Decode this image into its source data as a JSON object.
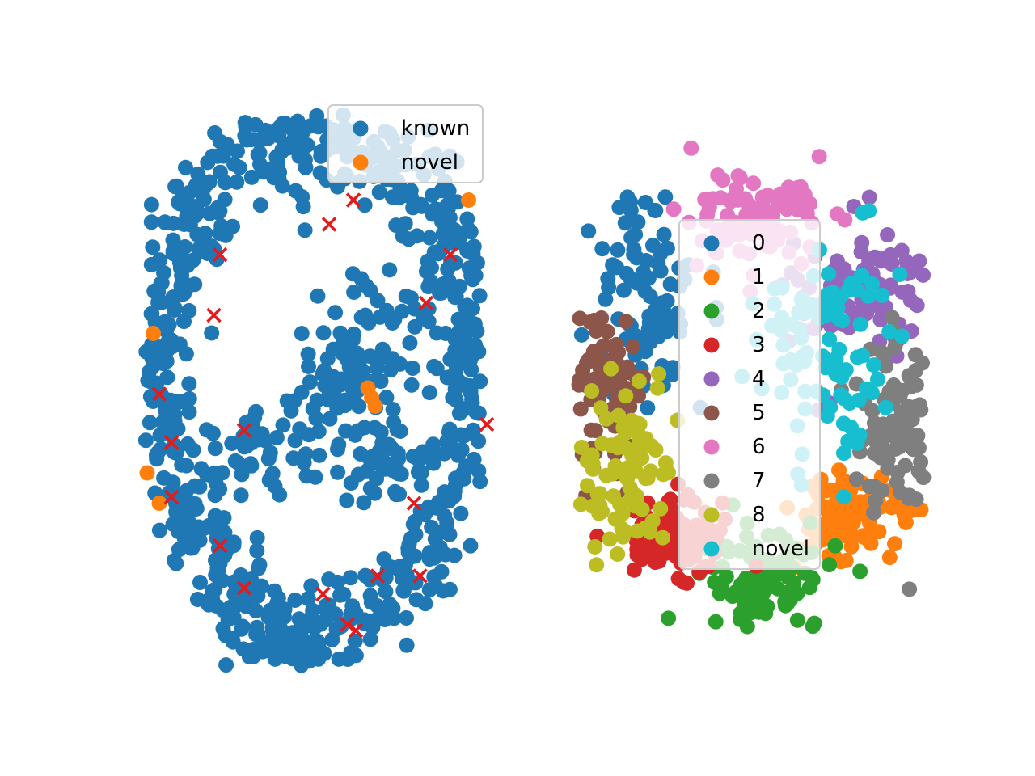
{
  "chart_data": [
    {
      "type": "scatter",
      "title": "",
      "xlabel": "",
      "ylabel": "",
      "axes_visible": false,
      "grid": false,
      "legend": {
        "placement": "top-right",
        "entries": [
          "known",
          "novel"
        ]
      },
      "series": [
        {
          "name": "known",
          "color": "#1f77b4",
          "marker": "circle",
          "description": "dense ring-shaped embedding cluster",
          "approx_count": 900
        },
        {
          "name": "novel",
          "color": "#ff7f0e",
          "marker": "circle",
          "points": [
            [
              -1.35,
              0.45
            ],
            [
              -1.4,
              -0.7
            ],
            [
              -1.3,
              -0.95
            ],
            [
              0.42,
              0.0
            ],
            [
              0.45,
              -0.08
            ],
            [
              0.48,
              -0.15
            ],
            [
              1.25,
              1.55
            ]
          ]
        },
        {
          "color": "#e41a1c",
          "marker": "x",
          "points": [
            [
              0.3,
              1.55
            ],
            [
              0.1,
              1.35
            ],
            [
              -0.8,
              1.1
            ],
            [
              1.1,
              1.1
            ],
            [
              -0.85,
              0.6
            ],
            [
              0.9,
              0.7
            ],
            [
              -1.3,
              -0.05
            ],
            [
              -0.6,
              -0.35
            ],
            [
              1.4,
              -0.3
            ],
            [
              -1.2,
              -0.45
            ],
            [
              -1.2,
              -0.9
            ],
            [
              0.8,
              -0.95
            ],
            [
              -0.8,
              -1.3
            ],
            [
              -0.6,
              -1.65
            ],
            [
              0.5,
              -1.55
            ],
            [
              0.85,
              -1.55
            ],
            [
              0.25,
              -1.95
            ],
            [
              0.32,
              -2.0
            ],
            [
              0.05,
              -1.7
            ]
          ]
        }
      ]
    },
    {
      "type": "scatter",
      "title": "",
      "xlabel": "",
      "ylabel": "",
      "axes_visible": false,
      "grid": false,
      "legend": {
        "placement": "center",
        "entries": [
          "0",
          "1",
          "2",
          "3",
          "4",
          "5",
          "6",
          "7",
          "8",
          "novel"
        ]
      },
      "series": [
        {
          "name": "0",
          "color": "#1f77b4",
          "centroid": [
            -1.2,
            1.0
          ]
        },
        {
          "name": "1",
          "color": "#ff7f0e",
          "centroid": [
            1.1,
            -1.4
          ]
        },
        {
          "name": "2",
          "color": "#2ca02c",
          "centroid": [
            0.1,
            -2.1
          ]
        },
        {
          "name": "3",
          "color": "#d62728",
          "centroid": [
            -0.9,
            -1.7
          ]
        },
        {
          "name": "4",
          "color": "#9467bd",
          "centroid": [
            1.3,
            1.2
          ]
        },
        {
          "name": "5",
          "color": "#8c564b",
          "centroid": [
            -1.7,
            0.0
          ]
        },
        {
          "name": "6",
          "color": "#e377c2",
          "centroid": [
            0.0,
            1.9
          ]
        },
        {
          "name": "7",
          "color": "#7f7f7f",
          "centroid": [
            1.6,
            -0.5
          ]
        },
        {
          "name": "8",
          "color": "#bcbd22",
          "centroid": [
            -1.5,
            -0.9
          ]
        },
        {
          "name": "novel",
          "color": "#17becf",
          "centroid": [
            0.8,
            0.4
          ]
        }
      ]
    }
  ]
}
